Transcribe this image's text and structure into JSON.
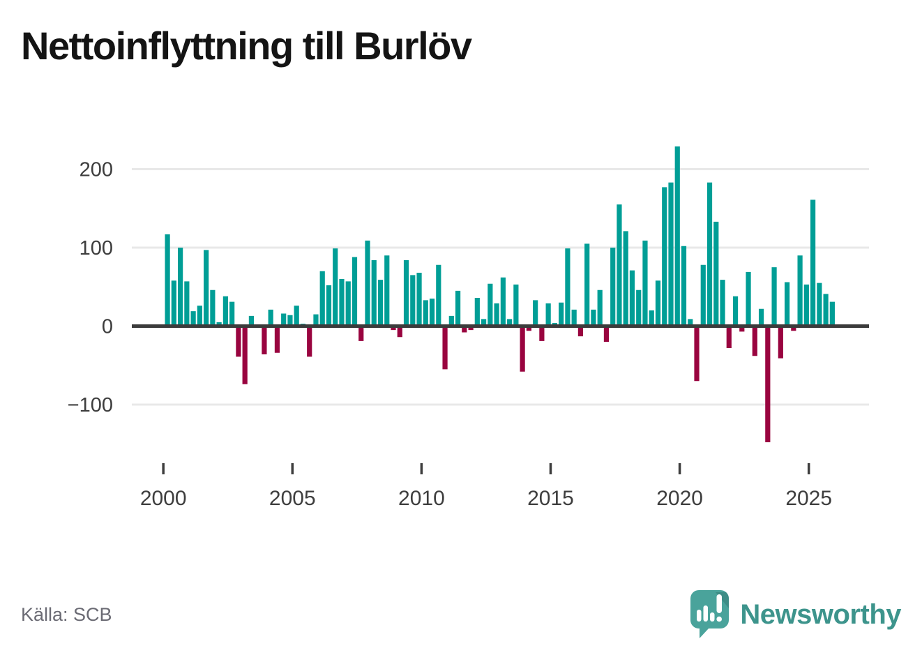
{
  "chart_data": {
    "type": "bar",
    "title": "Nettoinflyttning till Burlöv",
    "frequency": "quarterly",
    "x_start": "2000 Q1",
    "x_end": "2025 Q4",
    "values": [
      117,
      58,
      100,
      57,
      19,
      26,
      97,
      46,
      5,
      38,
      31,
      -39,
      -74,
      13,
      0,
      -36,
      21,
      -34,
      16,
      14,
      26,
      3,
      -39,
      15,
      70,
      52,
      99,
      60,
      57,
      88,
      -19,
      109,
      84,
      59,
      90,
      -5,
      -14,
      84,
      65,
      68,
      33,
      35,
      78,
      -55,
      13,
      45,
      -8,
      -5,
      36,
      9,
      54,
      29,
      62,
      9,
      53,
      -58,
      -6,
      33,
      -19,
      29,
      4,
      30,
      99,
      21,
      -13,
      105,
      21,
      46,
      -20,
      100,
      155,
      121,
      71,
      46,
      109,
      20,
      58,
      177,
      183,
      229,
      102,
      9,
      -70,
      78,
      183,
      133,
      59,
      -28,
      38,
      -7,
      69,
      -38,
      22,
      -148,
      75,
      -41,
      56,
      -6,
      90,
      53,
      161,
      55,
      41,
      31
    ],
    "yticks": [
      {
        "value": 200,
        "label": "200"
      },
      {
        "value": 100,
        "label": "100"
      },
      {
        "value": 0,
        "label": "0"
      },
      {
        "value": -100,
        "label": "−100"
      }
    ],
    "xticks": [
      {
        "year": 2000,
        "label": "2000"
      },
      {
        "year": 2005,
        "label": "2005"
      },
      {
        "year": 2010,
        "label": "2010"
      },
      {
        "year": 2015,
        "label": "2015"
      },
      {
        "year": 2020,
        "label": "2020"
      },
      {
        "year": 2025,
        "label": "2025"
      }
    ],
    "ylim": [
      -160,
      245
    ],
    "grid": true,
    "legend": false,
    "positive_color": "#009e96",
    "negative_color": "#99043f",
    "gridline_color": "#e8e8e8",
    "zero_line_color": "#3b3b3b",
    "axis_text_color": "#3d3d3d"
  },
  "footer": {
    "source": "Källa: SCB",
    "brand": "Newsworthy",
    "brand_color": "#3d948c",
    "logo_bubble_color": "#4aa39b",
    "logo_shadow_color": "#3e8d86"
  }
}
